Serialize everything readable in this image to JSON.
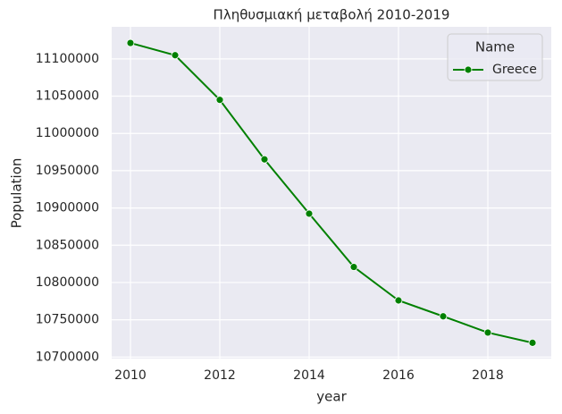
{
  "chart_data": {
    "type": "line",
    "title": "Πληθυσμιακή μεταβολή 2010-2019",
    "x_label": "year",
    "y_label": "Population",
    "x": [
      2010,
      2011,
      2012,
      2013,
      2014,
      2015,
      2016,
      2017,
      2018,
      2019
    ],
    "series": [
      {
        "name": "Greece",
        "color": "#008000",
        "values": [
          11121341,
          11104899,
          11045011,
          10965211,
          10892413,
          10820883,
          10775971,
          10754679,
          10732882,
          10719160
        ]
      }
    ],
    "legend_title": "Name",
    "legend_position": "upper right",
    "xlim": [
      2009.58,
      2019.42
    ],
    "xticks": [
      2010,
      2012,
      2014,
      2016,
      2018
    ],
    "ylim": [
      10698000,
      11143000
    ],
    "yticks": [
      10700000,
      10750000,
      10800000,
      10850000,
      10900000,
      10950000,
      11000000,
      11050000,
      11100000
    ],
    "grid": true
  }
}
